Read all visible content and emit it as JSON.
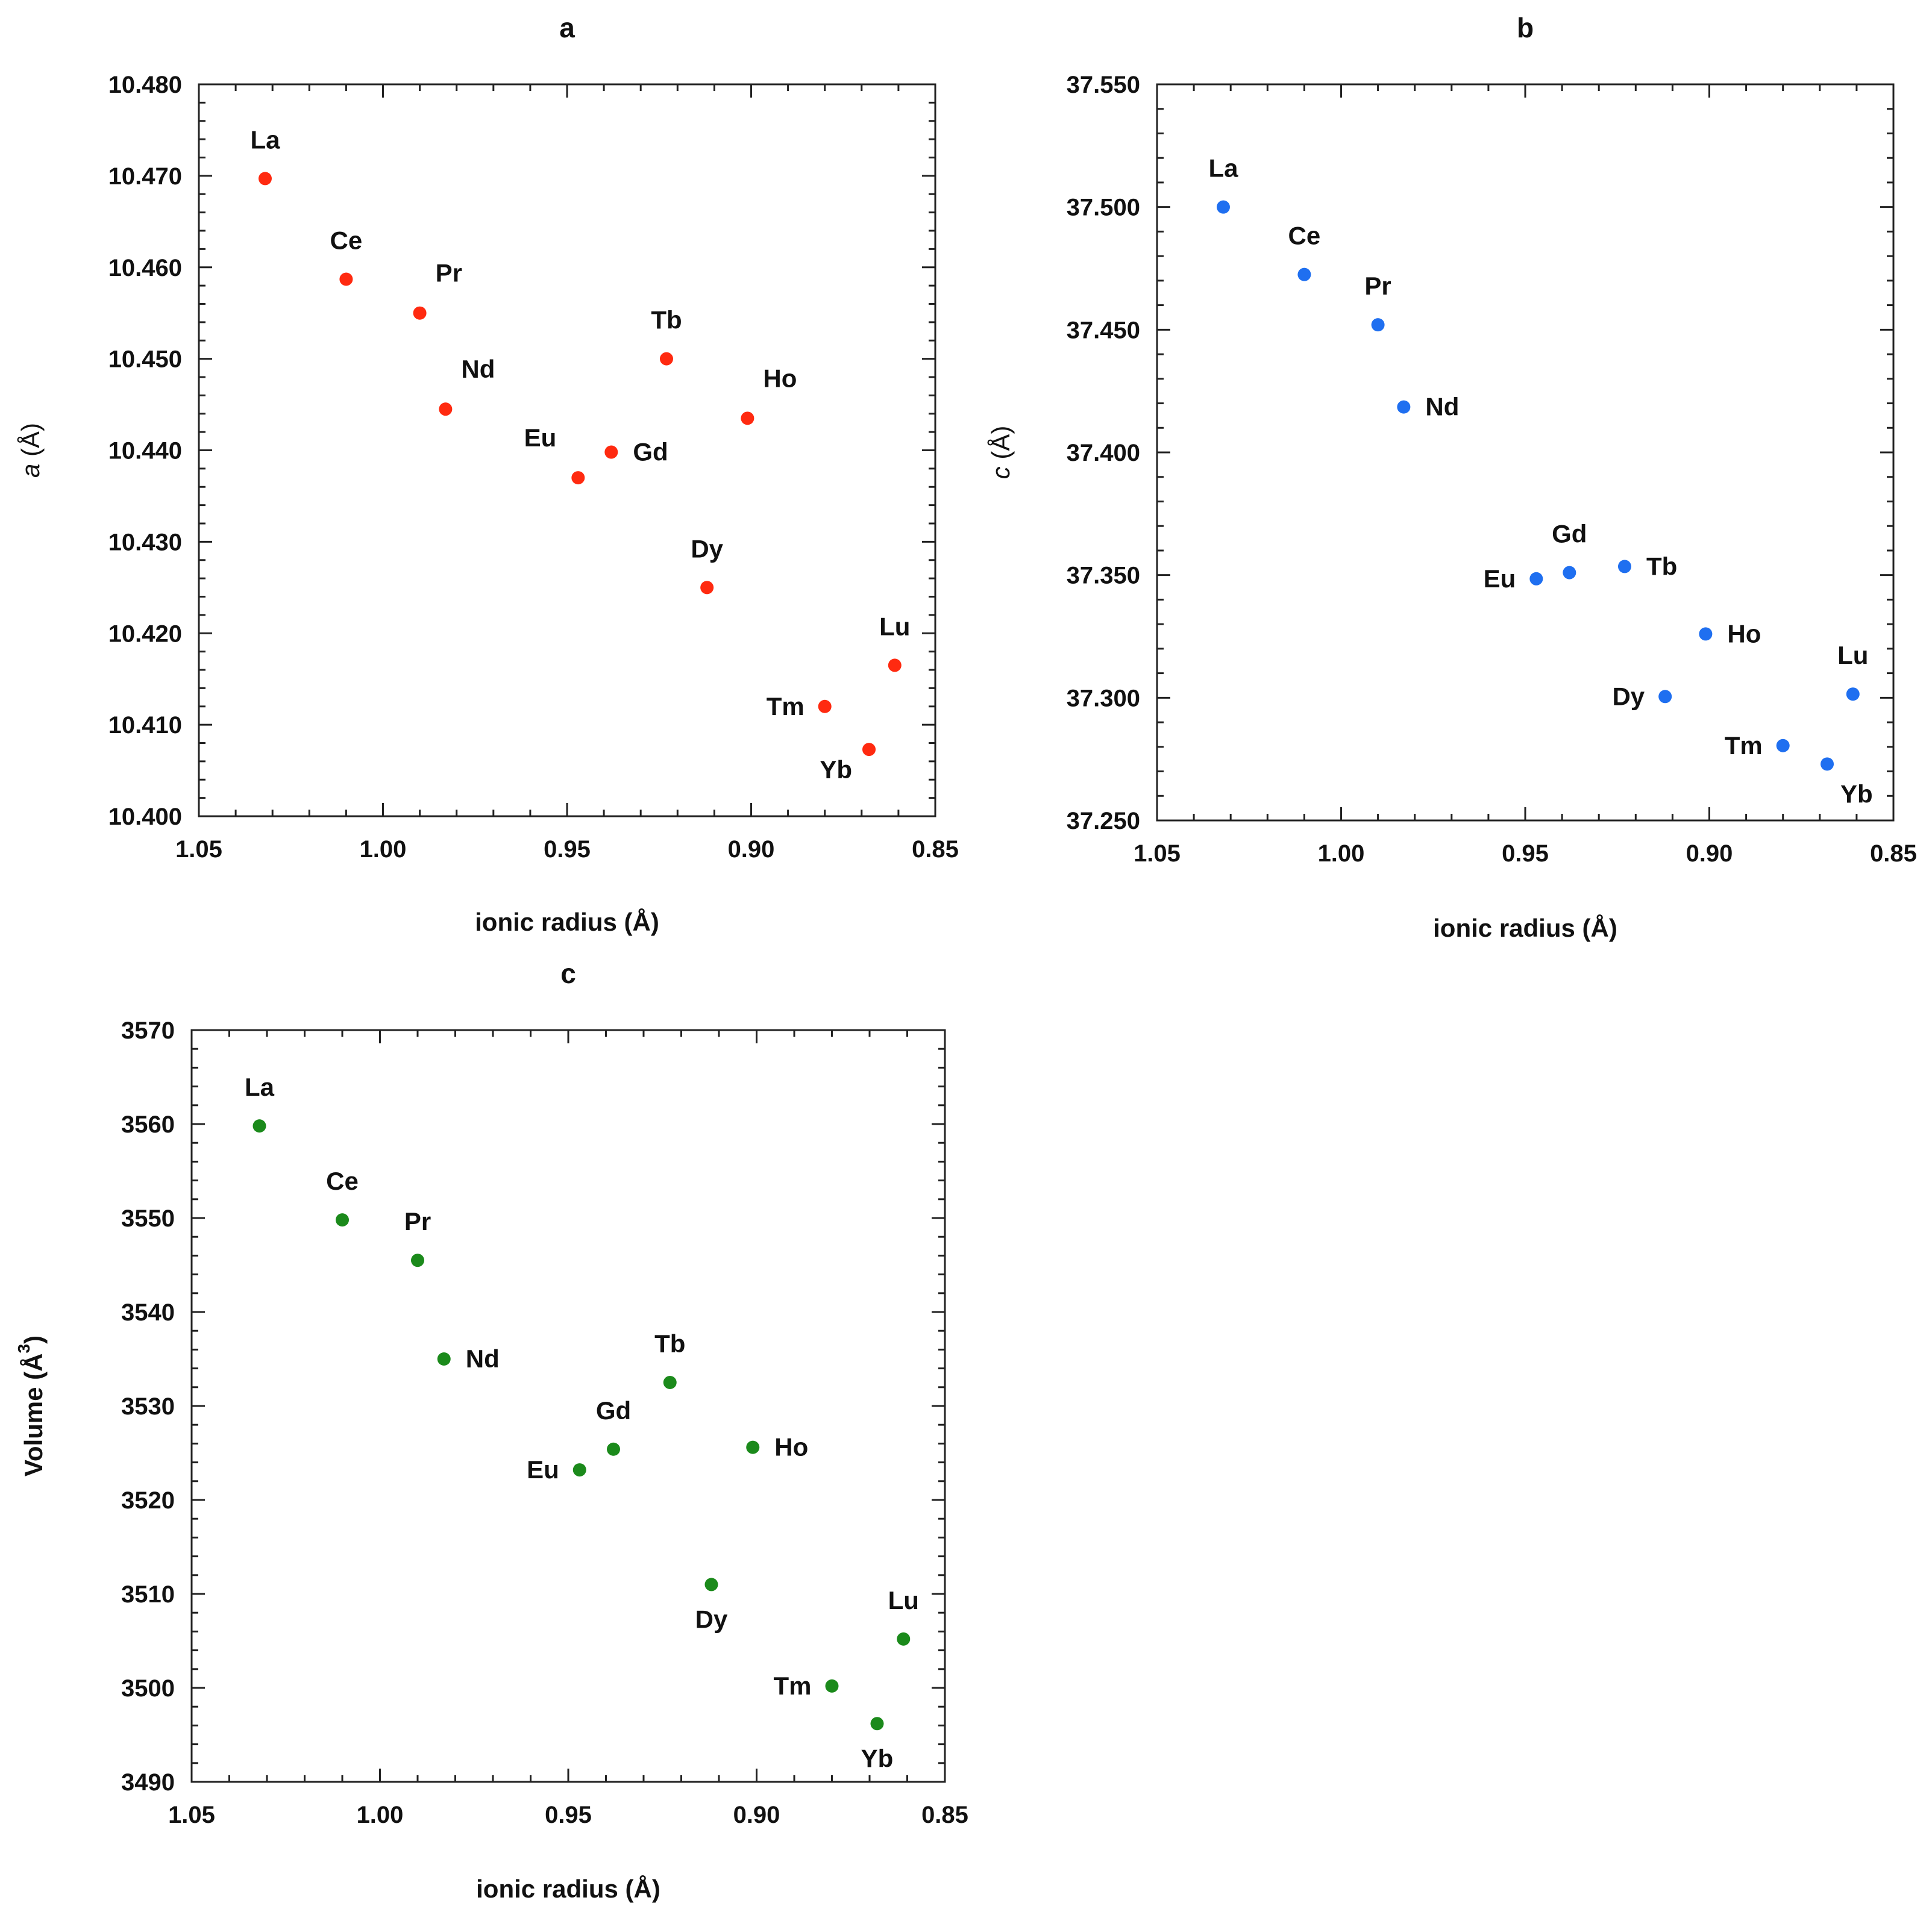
{
  "chart_data": [
    {
      "type": "scatter",
      "panel": "a",
      "title": "a",
      "xlabel": "ionic radius (Å)",
      "ylabel": "a (Å)",
      "ylabel_italic": "a",
      "ylabel_rest": " (Å)",
      "xlim": [
        1.05,
        0.85
      ],
      "ylim": [
        10.4,
        10.48
      ],
      "xticks": [
        "1.05",
        "1.00",
        "0.95",
        "0.90",
        "0.85"
      ],
      "yticks": [
        "10.400",
        "10.410",
        "10.420",
        "10.430",
        "10.440",
        "10.450",
        "10.460",
        "10.470",
        "10.480"
      ],
      "color": "#ff2a10",
      "points": [
        {
          "label": "La",
          "x": 1.032,
          "y": 10.4697,
          "pos": "above"
        },
        {
          "label": "Ce",
          "x": 1.01,
          "y": 10.4587,
          "pos": "above"
        },
        {
          "label": "Pr",
          "x": 0.99,
          "y": 10.455,
          "pos": "above-right"
        },
        {
          "label": "Nd",
          "x": 0.983,
          "y": 10.4445,
          "pos": "above-right"
        },
        {
          "label": "Eu",
          "x": 0.947,
          "y": 10.437,
          "pos": "above-left"
        },
        {
          "label": "Gd",
          "x": 0.938,
          "y": 10.4398,
          "pos": "right"
        },
        {
          "label": "Tb",
          "x": 0.923,
          "y": 10.45,
          "pos": "above"
        },
        {
          "label": "Dy",
          "x": 0.912,
          "y": 10.425,
          "pos": "above"
        },
        {
          "label": "Ho",
          "x": 0.901,
          "y": 10.4435,
          "pos": "above-right"
        },
        {
          "label": "Tm",
          "x": 0.88,
          "y": 10.412,
          "pos": "left"
        },
        {
          "label": "Yb",
          "x": 0.868,
          "y": 10.4073,
          "pos": "below-left"
        },
        {
          "label": "Lu",
          "x": 0.861,
          "y": 10.4165,
          "pos": "above"
        }
      ]
    },
    {
      "type": "scatter",
      "panel": "b",
      "title": "b",
      "xlabel": "ionic radius (Å)",
      "ylabel": "c (Å)",
      "ylabel_italic": "c",
      "ylabel_rest": " (Å)",
      "xlim": [
        1.05,
        0.85
      ],
      "ylim": [
        37.25,
        37.55
      ],
      "xticks": [
        "1.05",
        "1.00",
        "0.95",
        "0.90",
        "0.85"
      ],
      "yticks": [
        "37.250",
        "37.300",
        "37.350",
        "37.400",
        "37.450",
        "37.500",
        "37.550"
      ],
      "color": "#1f6ff0",
      "points": [
        {
          "label": "La",
          "x": 1.032,
          "y": 37.5,
          "pos": "above"
        },
        {
          "label": "Ce",
          "x": 1.01,
          "y": 37.4725,
          "pos": "above"
        },
        {
          "label": "Pr",
          "x": 0.99,
          "y": 37.452,
          "pos": "above"
        },
        {
          "label": "Nd",
          "x": 0.983,
          "y": 37.4185,
          "pos": "right"
        },
        {
          "label": "Eu",
          "x": 0.947,
          "y": 37.3485,
          "pos": "left"
        },
        {
          "label": "Gd",
          "x": 0.938,
          "y": 37.351,
          "pos": "above"
        },
        {
          "label": "Tb",
          "x": 0.923,
          "y": 37.3535,
          "pos": "right"
        },
        {
          "label": "Dy",
          "x": 0.912,
          "y": 37.3005,
          "pos": "left"
        },
        {
          "label": "Ho",
          "x": 0.901,
          "y": 37.326,
          "pos": "right"
        },
        {
          "label": "Tm",
          "x": 0.88,
          "y": 37.2805,
          "pos": "left"
        },
        {
          "label": "Yb",
          "x": 0.868,
          "y": 37.273,
          "pos": "below-right"
        },
        {
          "label": "Lu",
          "x": 0.861,
          "y": 37.3015,
          "pos": "above"
        }
      ]
    },
    {
      "type": "scatter",
      "panel": "c",
      "title": "c",
      "xlabel": "ionic radius (Å)",
      "ylabel": "Volume (Å3)",
      "ylabel_base": "Volume (Å",
      "ylabel_sup": "3",
      "ylabel_end": ")",
      "xlim": [
        1.05,
        0.85
      ],
      "ylim": [
        3490,
        3570
      ],
      "xticks": [
        "1.05",
        "1.00",
        "0.95",
        "0.90",
        "0.85"
      ],
      "yticks": [
        "3490",
        "3500",
        "3510",
        "3520",
        "3530",
        "3540",
        "3550",
        "3560",
        "3570"
      ],
      "color": "#1b8a1b",
      "points": [
        {
          "label": "La",
          "x": 1.032,
          "y": 3559.8,
          "pos": "above"
        },
        {
          "label": "Ce",
          "x": 1.01,
          "y": 3549.8,
          "pos": "above"
        },
        {
          "label": "Pr",
          "x": 0.99,
          "y": 3545.5,
          "pos": "above"
        },
        {
          "label": "Nd",
          "x": 0.983,
          "y": 3535.0,
          "pos": "right"
        },
        {
          "label": "Eu",
          "x": 0.947,
          "y": 3523.2,
          "pos": "left"
        },
        {
          "label": "Gd",
          "x": 0.938,
          "y": 3525.4,
          "pos": "above"
        },
        {
          "label": "Tb",
          "x": 0.923,
          "y": 3532.5,
          "pos": "above"
        },
        {
          "label": "Dy",
          "x": 0.912,
          "y": 3511.0,
          "pos": "below"
        },
        {
          "label": "Ho",
          "x": 0.901,
          "y": 3525.6,
          "pos": "right"
        },
        {
          "label": "Tm",
          "x": 0.88,
          "y": 3500.2,
          "pos": "left"
        },
        {
          "label": "Yb",
          "x": 0.868,
          "y": 3496.2,
          "pos": "below"
        },
        {
          "label": "Lu",
          "x": 0.861,
          "y": 3505.2,
          "pos": "above"
        }
      ]
    }
  ]
}
